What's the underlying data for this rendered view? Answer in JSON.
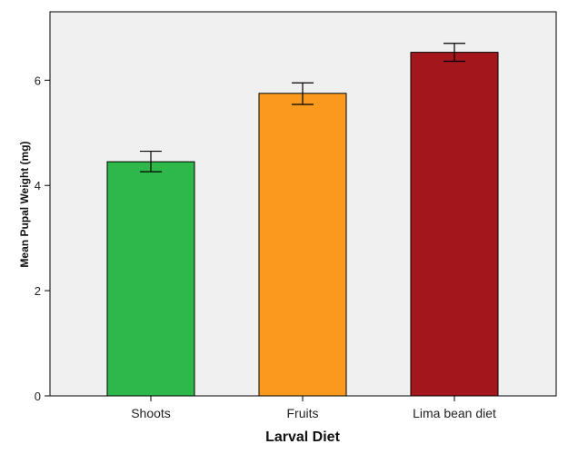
{
  "chart_data": {
    "type": "bar",
    "title": "",
    "xlabel": "Larval Diet",
    "ylabel": "Mean Pupal Weight (mg)",
    "categories": [
      "Shoots",
      "Fruits",
      "Lima bean diet"
    ],
    "values": [
      4.45,
      5.75,
      6.53
    ],
    "error_low": [
      4.26,
      5.54,
      6.36
    ],
    "error_high": [
      4.65,
      5.95,
      6.7
    ],
    "ylim": [
      0,
      7.3
    ],
    "yticks": [
      0,
      2,
      4,
      6
    ],
    "grid": false,
    "colors": {
      "bars": [
        "#2eb84a",
        "#f99a1f",
        "#a3161b"
      ],
      "plot_background": "#f0f0f0",
      "axis": "#000000"
    }
  }
}
